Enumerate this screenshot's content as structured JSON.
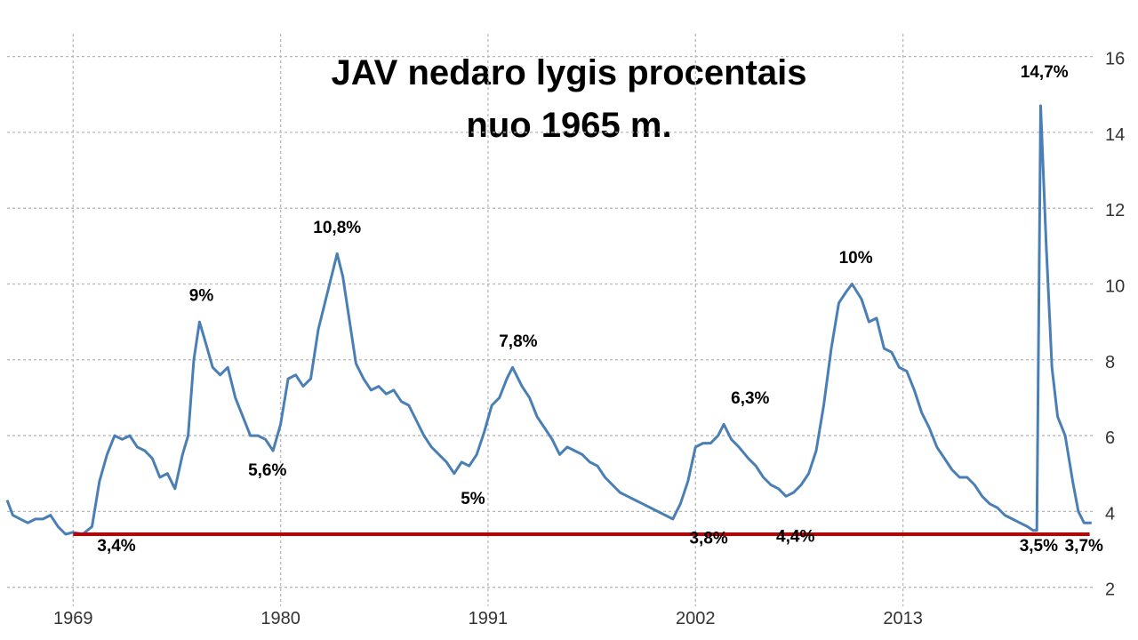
{
  "chart_data": {
    "type": "line",
    "title_lines": [
      "JAV nedaro lygis procentais",
      "nuo 1965 m."
    ],
    "xlabel": "",
    "ylabel": "",
    "xlim": [
      1965.5,
      2023.2
    ],
    "ylim": [
      1.5,
      16.6
    ],
    "x_ticks": [
      "1969",
      "1980",
      "1991",
      "2002",
      "2013"
    ],
    "y_ticks": [
      "2",
      "4",
      "6",
      "8",
      "10",
      "12",
      "14",
      "16"
    ],
    "grid": true,
    "baseline": {
      "value": 3.4,
      "color": "#c00000"
    },
    "series": [
      {
        "color": "#4a7fb5",
        "points": [
          [
            1965.5,
            4.3
          ],
          [
            1965.8,
            3.9
          ],
          [
            1966.2,
            3.8
          ],
          [
            1966.6,
            3.7
          ],
          [
            1967.0,
            3.8
          ],
          [
            1967.4,
            3.8
          ],
          [
            1967.8,
            3.9
          ],
          [
            1968.2,
            3.6
          ],
          [
            1968.6,
            3.4
          ],
          [
            1969.0,
            3.45
          ],
          [
            1969.5,
            3.4
          ],
          [
            1970.0,
            3.6
          ],
          [
            1970.4,
            4.8
          ],
          [
            1970.8,
            5.5
          ],
          [
            1971.2,
            6.0
          ],
          [
            1971.6,
            5.9
          ],
          [
            1972.0,
            6.0
          ],
          [
            1972.4,
            5.7
          ],
          [
            1972.8,
            5.6
          ],
          [
            1973.2,
            5.4
          ],
          [
            1973.6,
            4.9
          ],
          [
            1974.0,
            5.0
          ],
          [
            1974.4,
            4.6
          ],
          [
            1974.8,
            5.5
          ],
          [
            1975.1,
            6.0
          ],
          [
            1975.4,
            8.0
          ],
          [
            1975.7,
            9.0
          ],
          [
            1976.0,
            8.5
          ],
          [
            1976.4,
            7.8
          ],
          [
            1976.8,
            7.6
          ],
          [
            1977.2,
            7.8
          ],
          [
            1977.6,
            7.0
          ],
          [
            1978.0,
            6.5
          ],
          [
            1978.4,
            6.0
          ],
          [
            1978.8,
            6.0
          ],
          [
            1979.2,
            5.9
          ],
          [
            1979.6,
            5.6
          ],
          [
            1980.0,
            6.3
          ],
          [
            1980.4,
            7.5
          ],
          [
            1980.8,
            7.6
          ],
          [
            1981.2,
            7.3
          ],
          [
            1981.6,
            7.5
          ],
          [
            1982.0,
            8.8
          ],
          [
            1982.4,
            9.6
          ],
          [
            1982.8,
            10.4
          ],
          [
            1983.0,
            10.8
          ],
          [
            1983.3,
            10.2
          ],
          [
            1983.6,
            9.2
          ],
          [
            1984.0,
            7.9
          ],
          [
            1984.4,
            7.5
          ],
          [
            1984.8,
            7.2
          ],
          [
            1985.2,
            7.3
          ],
          [
            1985.6,
            7.1
          ],
          [
            1986.0,
            7.2
          ],
          [
            1986.4,
            6.9
          ],
          [
            1986.8,
            6.8
          ],
          [
            1987.2,
            6.4
          ],
          [
            1987.6,
            6.0
          ],
          [
            1988.0,
            5.7
          ],
          [
            1988.4,
            5.5
          ],
          [
            1988.8,
            5.3
          ],
          [
            1989.2,
            5.0
          ],
          [
            1989.6,
            5.3
          ],
          [
            1990.0,
            5.2
          ],
          [
            1990.4,
            5.5
          ],
          [
            1990.8,
            6.1
          ],
          [
            1991.2,
            6.8
          ],
          [
            1991.6,
            7.0
          ],
          [
            1992.0,
            7.5
          ],
          [
            1992.3,
            7.8
          ],
          [
            1992.8,
            7.3
          ],
          [
            1993.2,
            7.0
          ],
          [
            1993.6,
            6.5
          ],
          [
            1994.0,
            6.2
          ],
          [
            1994.4,
            5.9
          ],
          [
            1994.8,
            5.5
          ],
          [
            1995.2,
            5.7
          ],
          [
            1995.6,
            5.6
          ],
          [
            1996.0,
            5.5
          ],
          [
            1996.4,
            5.3
          ],
          [
            1996.8,
            5.2
          ],
          [
            1997.2,
            4.9
          ],
          [
            1997.6,
            4.7
          ],
          [
            1998.0,
            4.5
          ],
          [
            1998.4,
            4.4
          ],
          [
            1998.8,
            4.3
          ],
          [
            1999.2,
            4.2
          ],
          [
            1999.6,
            4.1
          ],
          [
            2000.0,
            4.0
          ],
          [
            2000.4,
            3.9
          ],
          [
            2000.8,
            3.8
          ],
          [
            2001.2,
            4.2
          ],
          [
            2001.6,
            4.8
          ],
          [
            2002.0,
            5.7
          ],
          [
            2002.4,
            5.8
          ],
          [
            2002.8,
            5.8
          ],
          [
            2003.2,
            6.0
          ],
          [
            2003.5,
            6.3
          ],
          [
            2003.9,
            5.9
          ],
          [
            2004.3,
            5.7
          ],
          [
            2004.8,
            5.4
          ],
          [
            2005.2,
            5.2
          ],
          [
            2005.6,
            4.9
          ],
          [
            2006.0,
            4.7
          ],
          [
            2006.4,
            4.6
          ],
          [
            2006.8,
            4.4
          ],
          [
            2007.2,
            4.5
          ],
          [
            2007.6,
            4.7
          ],
          [
            2008.0,
            5.0
          ],
          [
            2008.4,
            5.6
          ],
          [
            2008.8,
            6.8
          ],
          [
            2009.2,
            8.3
          ],
          [
            2009.6,
            9.5
          ],
          [
            2010.0,
            9.8
          ],
          [
            2010.3,
            10.0
          ],
          [
            2010.8,
            9.6
          ],
          [
            2011.2,
            9.0
          ],
          [
            2011.6,
            9.1
          ],
          [
            2012.0,
            8.3
          ],
          [
            2012.4,
            8.2
          ],
          [
            2012.8,
            7.8
          ],
          [
            2013.2,
            7.7
          ],
          [
            2013.6,
            7.2
          ],
          [
            2014.0,
            6.6
          ],
          [
            2014.4,
            6.2
          ],
          [
            2014.8,
            5.7
          ],
          [
            2015.2,
            5.4
          ],
          [
            2015.6,
            5.1
          ],
          [
            2016.0,
            4.9
          ],
          [
            2016.4,
            4.9
          ],
          [
            2016.8,
            4.7
          ],
          [
            2017.2,
            4.4
          ],
          [
            2017.6,
            4.2
          ],
          [
            2018.0,
            4.1
          ],
          [
            2018.4,
            3.9
          ],
          [
            2018.8,
            3.8
          ],
          [
            2019.2,
            3.7
          ],
          [
            2019.6,
            3.6
          ],
          [
            2019.9,
            3.5
          ],
          [
            2020.1,
            3.5
          ],
          [
            2020.3,
            14.7
          ],
          [
            2020.6,
            11.0
          ],
          [
            2020.9,
            7.8
          ],
          [
            2021.2,
            6.5
          ],
          [
            2021.6,
            6.0
          ],
          [
            2022.0,
            4.8
          ],
          [
            2022.3,
            4.0
          ],
          [
            2022.6,
            3.7
          ],
          [
            2023.0,
            3.7
          ]
        ]
      }
    ],
    "annotations": [
      "3,4%",
      "9%",
      "5,6%",
      "10,8%",
      "5%",
      "7,8%",
      "3,8%",
      "6,3%",
      "4,4%",
      "10%",
      "14,7%",
      "3,5%",
      "3,7%"
    ]
  }
}
